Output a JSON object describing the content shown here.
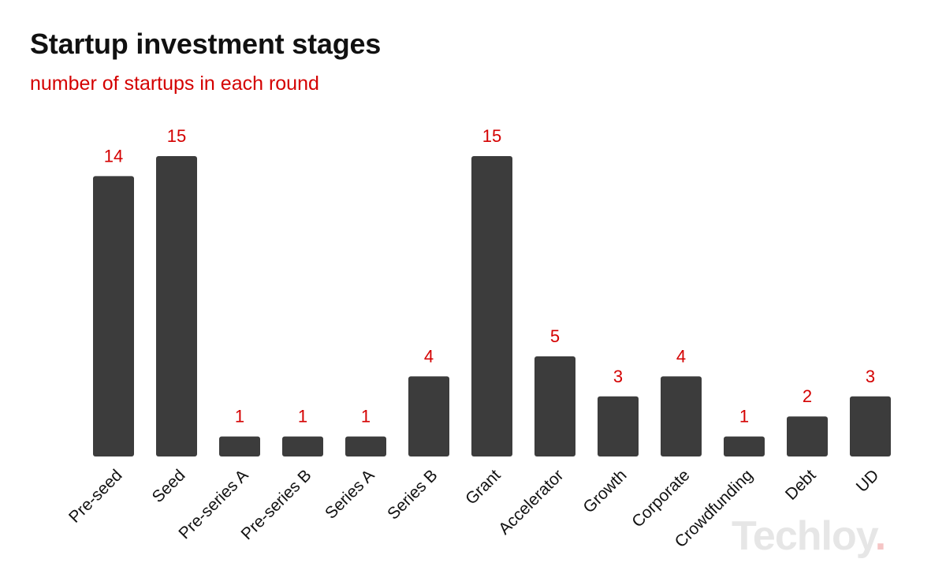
{
  "title": "Startup investment stages",
  "subtitle": "number of startups in each round",
  "watermark": {
    "text": "Techloy",
    "dot": "."
  },
  "colors": {
    "bar": "#3c3c3c",
    "value_label": "#d40000",
    "title": "#111111",
    "subtitle": "#d40000"
  },
  "chart_data": {
    "type": "bar",
    "title": "Startup investment stages",
    "subtitle": "number of startups in each round",
    "xlabel": "",
    "ylabel": "",
    "categories": [
      "Pre-seed",
      "Seed",
      "Pre-series A",
      "Pre-series B",
      "Series A",
      "Series B",
      "Grant",
      "Accelerator",
      "Growth",
      "Corporate",
      "Crowdfunding",
      "Debt",
      "UD"
    ],
    "values": [
      14,
      15,
      1,
      1,
      1,
      4,
      15,
      5,
      3,
      4,
      1,
      2,
      3
    ],
    "ylim": [
      0,
      15
    ],
    "grid": false,
    "legend": "none",
    "data_labels": true
  }
}
